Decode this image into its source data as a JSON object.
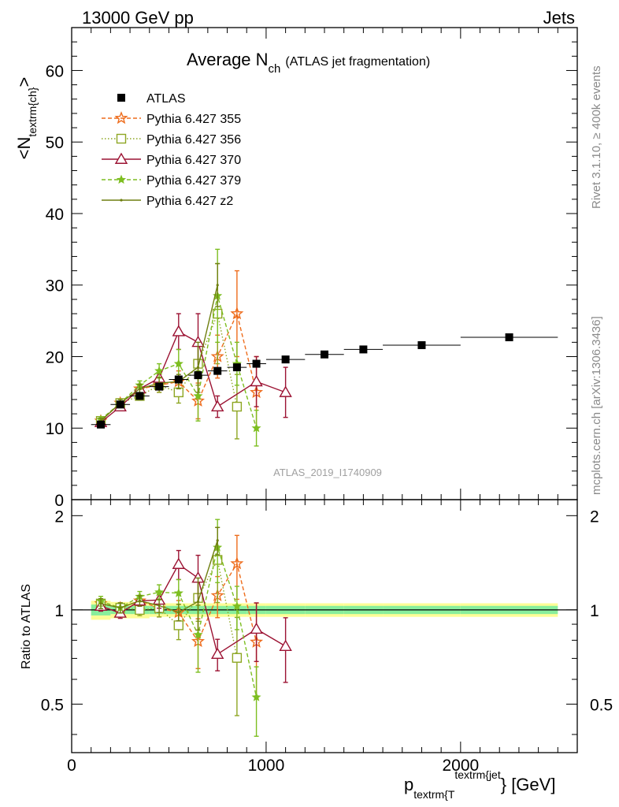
{
  "header": {
    "left": "13000 GeV pp",
    "right": "Jets"
  },
  "side_labels": {
    "rivet": "Rivet 3.1.10, ≥ 400k events",
    "mcplots": "mcplots.cern.ch [arXiv:1306.3436]"
  },
  "watermark": "ATLAS_2019_I1740909",
  "title": {
    "main": "Average N",
    "sub": "ch",
    "note": "(ATLAS jet fragmentation)"
  },
  "chart_data": {
    "type": "scatter",
    "xlabel": {
      "main": "p",
      "sub": "textrm{T",
      "sup": "textrm{jet",
      "tail": "} [GeV]"
    },
    "ylabel": {
      "pre": "<N",
      "sub": "textrm{ch}",
      "post": ">"
    },
    "ratio_ylabel": "Ratio to ATLAS",
    "xlim": [
      0,
      2600
    ],
    "ylim": [
      0,
      66
    ],
    "ratio_ylim": [
      0.35,
      2.25
    ],
    "x_ticks": [
      0,
      1000,
      2000
    ],
    "y_ticks": [
      0,
      10,
      20,
      30,
      40,
      50,
      60
    ],
    "ratio_ticks": [
      0.5,
      1,
      2
    ],
    "legend": "top-left",
    "reference": {
      "name": "ATLAS",
      "color": "#000000",
      "x": [
        150,
        250,
        350,
        450,
        550,
        650,
        750,
        850,
        950,
        1100,
        1300,
        1500,
        1800,
        2250
      ],
      "xerr": [
        50,
        50,
        50,
        50,
        50,
        50,
        50,
        50,
        50,
        100,
        100,
        100,
        200,
        250
      ],
      "y": [
        10.5,
        13.3,
        14.5,
        15.8,
        16.8,
        17.4,
        18.0,
        18.5,
        19.0,
        19.6,
        20.3,
        21.0,
        21.6,
        22.7
      ],
      "band_outer": [
        0.07,
        0.06,
        0.06,
        0.05,
        0.05,
        0.05,
        0.05,
        0.05,
        0.05,
        0.05,
        0.05,
        0.05,
        0.05,
        0.05
      ],
      "band_inner": [
        0.04,
        0.03,
        0.03,
        0.03,
        0.03,
        0.03,
        0.03,
        0.03,
        0.03,
        0.03,
        0.03,
        0.03,
        0.03,
        0.03
      ]
    },
    "series": [
      {
        "name": "Pythia 6.427 355",
        "color": "#ee6c1c",
        "dash": "5,3",
        "marker": "star-open",
        "x": [
          150,
          250,
          350,
          450,
          550,
          650,
          750,
          850,
          950
        ],
        "y": [
          11.0,
          13.5,
          15.5,
          16.0,
          16.5,
          13.8,
          20.0,
          26.0,
          15.0
        ],
        "err": [
          0.4,
          0.5,
          0.6,
          1.0,
          1.5,
          2.5,
          3.0,
          6.0,
          5.0
        ]
      },
      {
        "name": "Pythia 6.427 356",
        "color": "#8ea623",
        "dash": "1.5,2.5",
        "marker": "square-open",
        "x": [
          150,
          250,
          350,
          450,
          550,
          650,
          750,
          850
        ],
        "y": [
          11.0,
          13.5,
          14.5,
          16.0,
          15.0,
          19.0,
          26.0,
          13.0
        ],
        "err": [
          0.4,
          0.5,
          0.6,
          1.0,
          1.5,
          3.0,
          7.0,
          4.5
        ]
      },
      {
        "name": "Pythia 6.427 370",
        "color": "#9c1333",
        "dash": "",
        "marker": "triangle-open",
        "x": [
          150,
          250,
          350,
          450,
          550,
          650,
          750,
          950,
          1100
        ],
        "y": [
          10.8,
          13.0,
          15.5,
          17.0,
          23.5,
          22.0,
          13.0,
          16.5,
          15.0
        ],
        "err": [
          0.4,
          0.5,
          0.6,
          1.0,
          2.5,
          4.0,
          1.5,
          3.5,
          3.5
        ]
      },
      {
        "name": "Pythia 6.427 379",
        "color": "#7dbe21",
        "dash": "5,3",
        "marker": "star-filled",
        "x": [
          150,
          250,
          350,
          450,
          550,
          650,
          750,
          850,
          950
        ],
        "y": [
          11.2,
          13.5,
          16.0,
          18.0,
          19.0,
          14.5,
          28.5,
          19.0,
          10.0
        ],
        "err": [
          0.4,
          0.5,
          0.6,
          1.0,
          2.0,
          3.5,
          6.5,
          3.0,
          2.5
        ]
      },
      {
        "name": "Pythia 6.427 z2",
        "color": "#6f7f10",
        "dash": "",
        "marker": "dot",
        "x": [
          150,
          250,
          350,
          450,
          550,
          650,
          750
        ],
        "y": [
          11.0,
          13.5,
          15.5,
          16.3,
          16.5,
          18.5,
          30.0
        ],
        "err": [
          0.4,
          0.5,
          0.6,
          0.8,
          1.0,
          3.5,
          3.0
        ]
      }
    ]
  }
}
